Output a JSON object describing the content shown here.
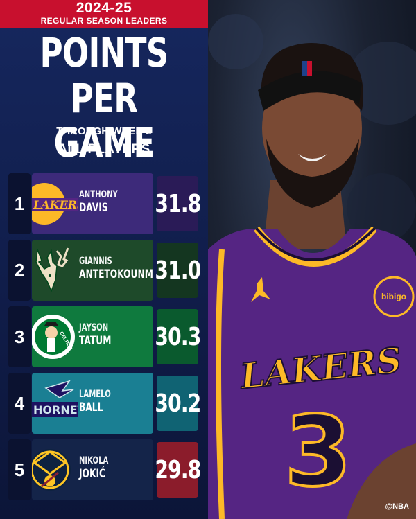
{
  "header": {
    "season": "2024-25",
    "subtitle": "REGULAR SEASON LEADERS"
  },
  "title": {
    "line1": "POINTS",
    "line2": "PER GAME",
    "through": "THROUGH WEEK 2",
    "scope": "ALL PLAYERS"
  },
  "leaders": [
    {
      "rank": "1",
      "first": "ANTHONY",
      "last": "DAVIS",
      "value": "31.8",
      "team": "Lakers",
      "logo_text": "LAKERS",
      "card_color": "#3d2a7a",
      "value_color": "#2a1b57"
    },
    {
      "rank": "2",
      "first": "GIANNIS",
      "last": "ANTETOKOUNMPO",
      "value": "31.0",
      "team": "Bucks",
      "logo_text": "",
      "card_color": "#1e4a2a",
      "value_color": "#143620"
    },
    {
      "rank": "3",
      "first": "JAYSON",
      "last": "TATUM",
      "value": "30.3",
      "team": "Celtics",
      "logo_text": "CELTICS",
      "card_color": "#0f7a3e",
      "value_color": "#0a5a2e"
    },
    {
      "rank": "4",
      "first": "LAMELO",
      "last": "BALL",
      "value": "30.2",
      "team": "Hornets",
      "logo_text": "HORNETS",
      "card_color": "#1a7f93",
      "value_color": "#106373"
    },
    {
      "rank": "5",
      "first": "NIKOLA",
      "last": "JOKIĆ",
      "value": "29.8",
      "team": "Nuggets",
      "logo_text": "",
      "card_color": "#142449",
      "value_color": "#8b1c2b"
    }
  ],
  "jersey": {
    "wordmark": "LAKERS",
    "number": "3",
    "patch": "bibigo"
  },
  "credit": "@NBA"
}
